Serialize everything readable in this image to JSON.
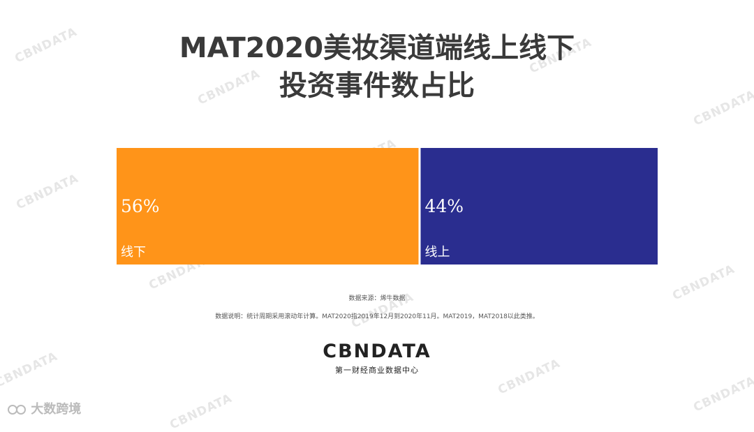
{
  "title_line1": "MAT2020美妆渠道端线上线下",
  "title_line2": "投资事件数占比",
  "chart_data": {
    "type": "bar",
    "orientation": "horizontal-stacked-100",
    "categories": [
      "线下",
      "线上"
    ],
    "values": [
      56,
      44
    ],
    "value_labels": [
      "56%",
      "44%"
    ],
    "colors": [
      "#FF9419",
      "#2A2D8F"
    ]
  },
  "source_text": "数据来源：烯牛数据",
  "note_text": "数据说明：统计周期采用滚动年计算。MAT2020指2019年12月到2020年11月。MAT2019，MAT2018以此类推。",
  "logo": {
    "text": "CBNDATA",
    "subtitle": "第一财经商业数据中心"
  },
  "watermark_text": "CBNDATA",
  "corner_brand": "大数跨境"
}
